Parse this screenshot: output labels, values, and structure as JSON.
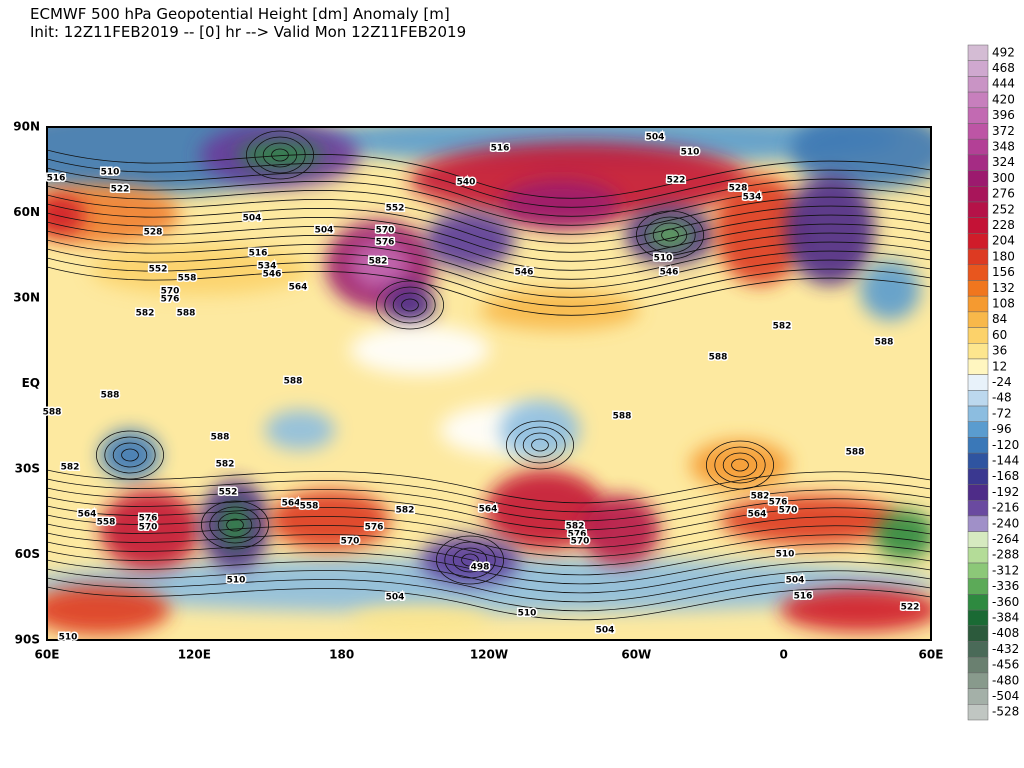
{
  "header": {
    "title": "ECMWF 500 hPa Geopotential Height [dm] Anomaly [m]",
    "subtitle": "Init: 12Z11FEB2019 -- [0] hr --> Valid Mon 12Z11FEB2019"
  },
  "map": {
    "lat_labels": [
      "90N",
      "60N",
      "30N",
      "EQ",
      "30S",
      "60S",
      "90S"
    ],
    "lon_labels": [
      "60E",
      "120E",
      "180",
      "120W",
      "60W",
      "0",
      "60E"
    ],
    "contour_labels": [
      "504",
      "510",
      "516",
      "522",
      "528",
      "534",
      "540",
      "552",
      "570",
      "576",
      "582",
      "564",
      "546",
      "534",
      "516",
      "504",
      "504",
      "528",
      "522",
      "516",
      "510",
      "552",
      "558",
      "570",
      "576",
      "582",
      "588",
      "588",
      "588",
      "588",
      "588",
      "582",
      "582",
      "564",
      "558",
      "576",
      "570",
      "552",
      "564",
      "558",
      "576",
      "582",
      "570",
      "564",
      "498",
      "510",
      "504",
      "510",
      "504",
      "510",
      "588",
      "588",
      "582",
      "588",
      "588",
      "582",
      "576",
      "570",
      "564",
      "510",
      "504",
      "516",
      "522",
      "510",
      "546",
      "546",
      "582",
      "576",
      "570"
    ]
  },
  "colorbar": {
    "labels": [
      492,
      468,
      444,
      420,
      396,
      372,
      348,
      324,
      300,
      276,
      252,
      228,
      204,
      180,
      156,
      132,
      108,
      84,
      60,
      36,
      12,
      -24,
      -48,
      -72,
      -96,
      -120,
      -144,
      -168,
      -192,
      -216,
      -240,
      -264,
      -288,
      -312,
      -336,
      -360,
      -384,
      -408,
      -432,
      -456,
      -480,
      -504,
      -528
    ],
    "colors": [
      "#d4bcd4",
      "#cfa8cf",
      "#c994c5",
      "#c77fbd",
      "#c26ab2",
      "#bd55a5",
      "#b34096",
      "#a52c84",
      "#9c1a6e",
      "#a8155a",
      "#b51248",
      "#c41236",
      "#d01c2a",
      "#dd3a22",
      "#e8561e",
      "#f0761e",
      "#f59a30",
      "#f8b84a",
      "#fcd26a",
      "#fde68e",
      "#fff6c0",
      "#e8f2fa",
      "#bcd8ee",
      "#8cbde0",
      "#5a9ccf",
      "#3a78b8",
      "#2f54a0",
      "#3a3890",
      "#4e2c88",
      "#6a4aa0",
      "#a090c8",
      "#d6eac0",
      "#b4dc98",
      "#8cc878",
      "#5caa58",
      "#2e8a40",
      "#1a6a34",
      "#2c5a3c",
      "#4a6a58",
      "#6a8070",
      "#889a8c",
      "#a4b0a8",
      "#c0c6c2"
    ]
  }
}
